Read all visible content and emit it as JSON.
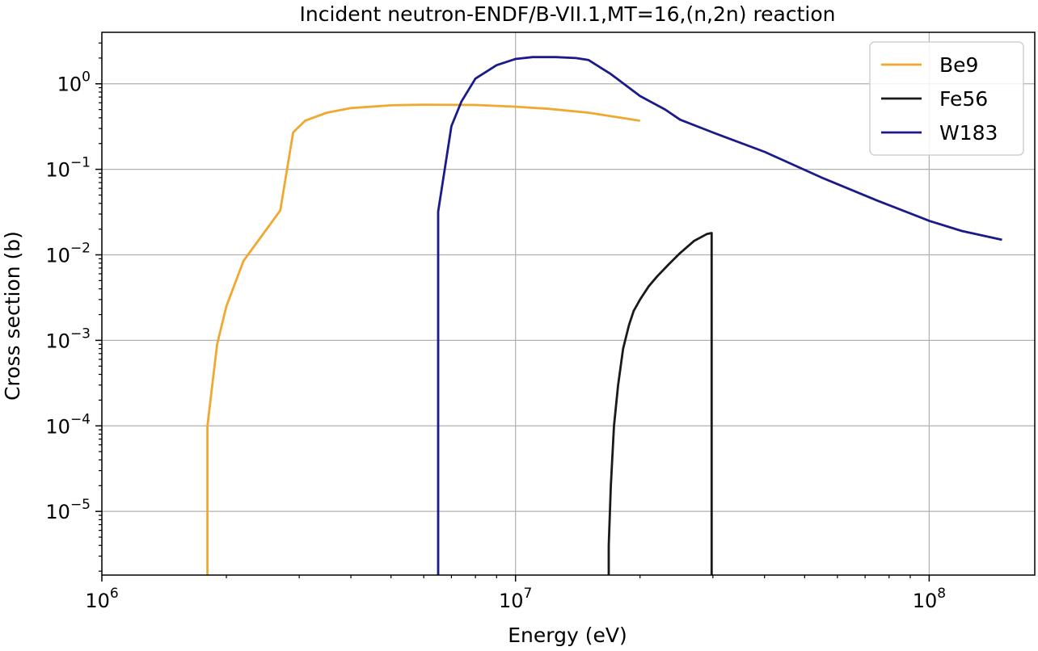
{
  "chart_data": {
    "type": "line",
    "title": "Incident neutron-ENDF/B-VII.1,MT=16,(n,2n) reaction",
    "xlabel": "Energy (eV)",
    "ylabel": "Cross section (b)",
    "xscale": "log",
    "yscale": "log",
    "xlim": [
      1000000,
      180000000
    ],
    "ylim": [
      1.8e-06,
      4
    ],
    "grid": true,
    "legend_position": "top-right",
    "x_ticks": [
      {
        "value": 1000000,
        "base": "10",
        "exp": "6"
      },
      {
        "value": 10000000,
        "base": "10",
        "exp": "7"
      },
      {
        "value": 100000000,
        "base": "10",
        "exp": "8"
      }
    ],
    "y_ticks": [
      {
        "value": 1,
        "base": "10",
        "exp": "0"
      },
      {
        "value": 0.1,
        "base": "10",
        "exp": "−1"
      },
      {
        "value": 0.01,
        "base": "10",
        "exp": "−2"
      },
      {
        "value": 0.001,
        "base": "10",
        "exp": "−3"
      },
      {
        "value": 0.0001,
        "base": "10",
        "exp": "−4"
      },
      {
        "value": 1e-05,
        "base": "10",
        "exp": "−5"
      }
    ],
    "series": [
      {
        "name": "Be9",
        "color": "#f0a830",
        "x": [
          1800000,
          1800000,
          1900000,
          2000000,
          2200000,
          2700000,
          2900000,
          3100000,
          3500000,
          4000000,
          5000000,
          6000000,
          8000000,
          10000000,
          12000000,
          15000000,
          20000000
        ],
        "y": [
          1.8e-06,
          0.0001,
          0.0009,
          0.0025,
          0.0085,
          0.033,
          0.27,
          0.37,
          0.46,
          0.52,
          0.56,
          0.57,
          0.565,
          0.54,
          0.51,
          0.46,
          0.37
        ]
      },
      {
        "name": "Fe56",
        "color": "#1a1a1a",
        "x": [
          16800000,
          16800000,
          17000000,
          17300000,
          17700000,
          18200000,
          18800000,
          19300000,
          20000000,
          21000000,
          22000000,
          23500000,
          25000000,
          27000000,
          29000000,
          29800000,
          29800000
        ],
        "y": [
          1.8e-06,
          4e-06,
          2e-05,
          0.0001,
          0.0003,
          0.0008,
          0.0015,
          0.0022,
          0.003,
          0.0043,
          0.0056,
          0.0078,
          0.0105,
          0.0145,
          0.0175,
          0.018,
          1.8e-06
        ]
      },
      {
        "name": "W183",
        "color": "#1a1a8a",
        "x": [
          6500000,
          6500000,
          7000000,
          7400000,
          8000000,
          9000000,
          10000000,
          11000000,
          12500000,
          14000000,
          15000000,
          17000000,
          20000000,
          23000000,
          25000000,
          30000000,
          40000000,
          55000000,
          75000000,
          100000000,
          120000000,
          150000000
        ],
        "y": [
          1.8e-06,
          0.032,
          0.32,
          0.62,
          1.15,
          1.65,
          1.95,
          2.05,
          2.05,
          2.0,
          1.9,
          1.3,
          0.72,
          0.5,
          0.38,
          0.27,
          0.16,
          0.08,
          0.043,
          0.025,
          0.019,
          0.015
        ]
      }
    ]
  }
}
